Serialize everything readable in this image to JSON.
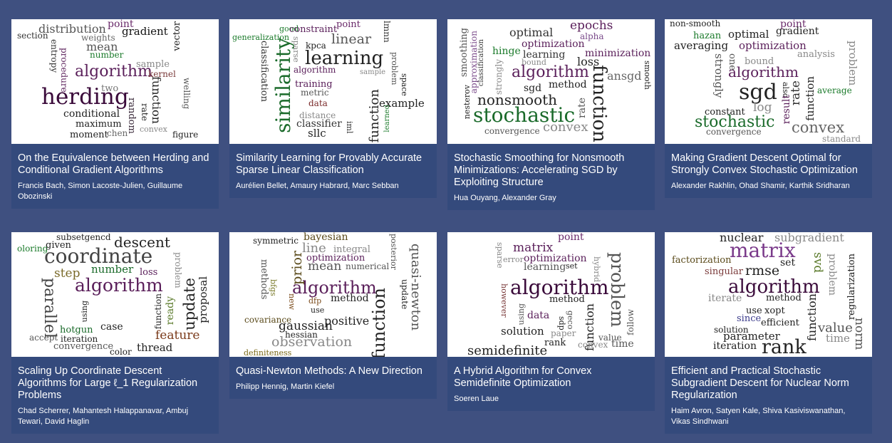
{
  "colors": {
    "background": "#3f5080",
    "card": "#344a7c",
    "cloud_bg": "#ffffff"
  },
  "papers": [
    {
      "title": "On the Equivalence between Herding and Conditional Gradient Algorithms",
      "authors": "Francis Bach, Simon Lacoste-Julien, Guillaume Obozinski",
      "words": [
        "herding",
        "algorithm",
        "distribution",
        "point",
        "gradient",
        "vector",
        "section",
        "weights",
        "mean",
        "number",
        "entropy",
        "procedure",
        "sample",
        "kernel",
        "two",
        "welling",
        "conditional",
        "maximum",
        "random",
        "rate",
        "function",
        "convex",
        "moment",
        "chen",
        "figure"
      ]
    },
    {
      "title": "Similarity Learning for Provably Accurate Sparse Linear Classification",
      "authors": "Aurélien Bellet, Amaury Habrard, Marc Sebban",
      "words": [
        "similarity",
        "learning",
        "linear",
        "point",
        "lmnn",
        "good",
        "constraint",
        "generalization",
        "sparse",
        "classification",
        "kpca",
        "algorithm",
        "sample",
        "problem",
        "space",
        "training",
        "metric",
        "data",
        "distance",
        "classifier",
        "sllc",
        "iml",
        "function",
        "learned",
        "example"
      ]
    },
    {
      "title": "Stochastic Smoothing for Nonsmooth Minimizations: Accelerating SGD by Exploiting Structure",
      "authors": "Hua Ouyang, Alexander Gray",
      "words": [
        "stochastic",
        "nonsmooth",
        "function",
        "algorithm",
        "optimal",
        "epochs",
        "alpha",
        "smoothing",
        "approximation",
        "classification",
        "hinge",
        "optimization",
        "minimization",
        "learning",
        "loss",
        "bound",
        "strongly",
        "sgd",
        "method",
        "ansgd",
        "smooth",
        "nesterov",
        "rate",
        "convergence",
        "convex"
      ]
    },
    {
      "title": "Making Gradient Descent Optimal for Strongly Convex Stochastic Optimization",
      "authors": "Alexander Rakhlin, Ohad Shamir, Karthik Sridharan",
      "words": [
        "sgd",
        "stochastic",
        "algorithm",
        "convex",
        "non-smooth",
        "point",
        "optimal",
        "gradient",
        "hazan",
        "averaging",
        "optimization",
        "analysis",
        "problem",
        "strongly",
        "bound",
        "one",
        "log",
        "also",
        "result",
        "rate",
        "function",
        "average",
        "constant",
        "convergence",
        "standard"
      ]
    },
    {
      "title": "Scaling Up Coordinate Descent Algorithms for Large ℓ_1 Regularization Problems",
      "authors": "Chad Scherrer, Mahantesh Halappanavar, Ambuj Tewari, David Haglin",
      "words": [
        "coordinate",
        "algorithm",
        "descent",
        "subsetgencd",
        "oloring",
        "given",
        "step",
        "number",
        "loss",
        "problem",
        "parallel",
        "update",
        "proposal",
        "ready",
        "function",
        "using",
        "hotgun",
        "case",
        "feature",
        "accept",
        "iteration",
        "convergence",
        "color",
        "thread"
      ]
    },
    {
      "title": "Quasi-Newton Methods: A New Direction",
      "authors": "Philipp Hennig, Martin Kiefel",
      "words": [
        "algorithm",
        "function",
        "observation",
        "quasi-newton",
        "symmetric",
        "bayesian",
        "posterior",
        "line",
        "integral",
        "prior",
        "optimization",
        "mean",
        "numerical",
        "methods",
        "bfgs",
        "new",
        "method",
        "update",
        "dfp",
        "use",
        "covariance",
        "positive",
        "gaussian",
        "hessian",
        "definiteness"
      ]
    },
    {
      "title": "A Hybrid Algorithm for Convex Semidefinite Optimization",
      "authors": "Soeren Laue",
      "words": [
        "algorithm",
        "problem",
        "semidefinite",
        "matrix",
        "point",
        "sparse",
        "error",
        "optimization",
        "learning",
        "set",
        "hybrid",
        "method",
        "however",
        "using",
        "data",
        "sdp",
        "geco",
        "function",
        "follow",
        "solution",
        "paper",
        "value",
        "rank",
        "convex",
        "time"
      ]
    },
    {
      "title": "Efficient and Practical Stochastic Subgradient Descent for Nuclear Norm Regularization",
      "authors": "Haim Avron, Satyen Kale, Shiva Kasiviswanathan, Vikas Sindhwani",
      "words": [
        "matrix",
        "algorithm",
        "rank",
        "nuclear",
        "subgradient",
        "factorization",
        "singular",
        "rmse",
        "set",
        "svd",
        "problem",
        "regularization",
        "iterate",
        "method",
        "use",
        "xopt",
        "since",
        "efficient",
        "function",
        "value",
        "norm",
        "solution",
        "parameter",
        "time",
        "iteration"
      ]
    }
  ]
}
